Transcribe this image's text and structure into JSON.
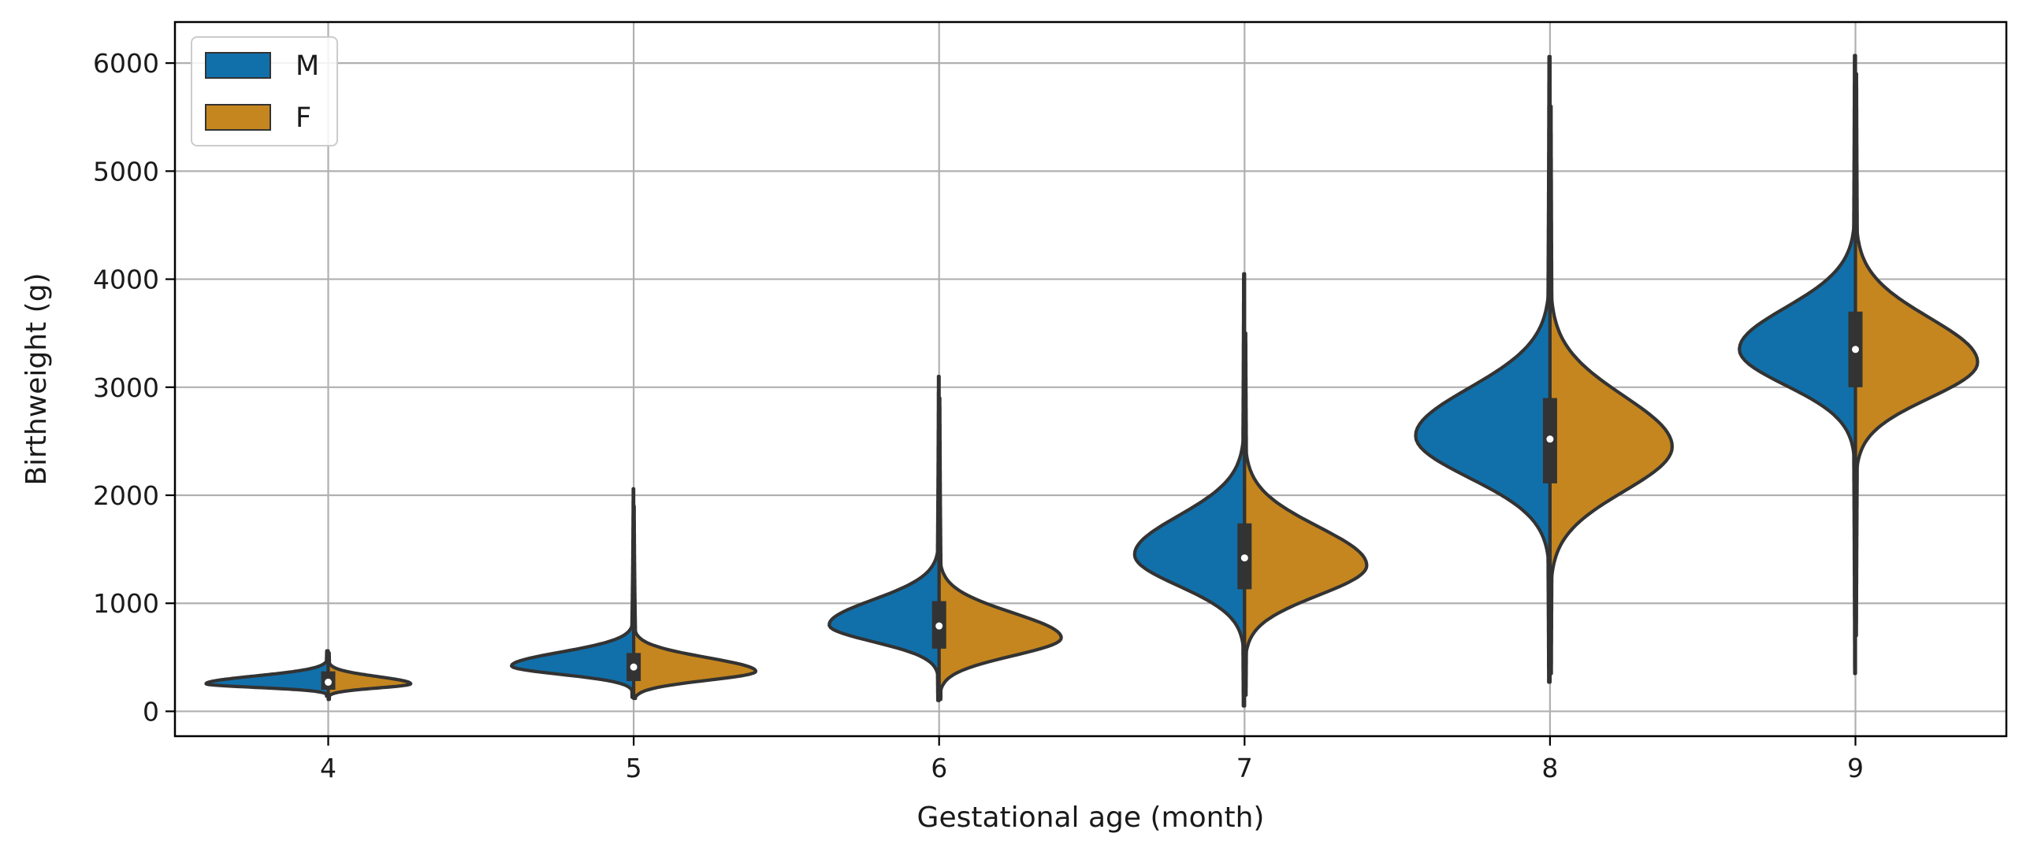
{
  "chart_data": {
    "type": "violin",
    "split": true,
    "xlabel": "Gestational age (month)",
    "ylabel": "Birthweight (g)",
    "ylim": [
      -230,
      6380
    ],
    "yticks": [
      0,
      1000,
      2000,
      3000,
      4000,
      5000,
      6000
    ],
    "categories": [
      "4",
      "5",
      "6",
      "7",
      "8",
      "9"
    ],
    "grid": true,
    "legend_position": "top-left",
    "series": [
      {
        "name": "M",
        "color": "#1170aa",
        "violins": [
          {
            "min": 140,
            "max": 560,
            "peak": 255,
            "peak_halfwidth": 0.4,
            "spread_below": 60,
            "spread_above": 130,
            "tail_top": 560,
            "tail_bottom": 140
          },
          {
            "min": 130,
            "max": 2060,
            "peak": 420,
            "peak_halfwidth": 0.4,
            "spread_below": 140,
            "spread_above": 230,
            "tail_top": 2060,
            "tail_bottom": 130
          },
          {
            "min": 100,
            "max": 3100,
            "peak": 800,
            "peak_halfwidth": 0.36,
            "spread_below": 280,
            "spread_above": 420,
            "tail_top": 3100,
            "tail_bottom": 100
          },
          {
            "min": 50,
            "max": 4050,
            "peak": 1450,
            "peak_halfwidth": 0.36,
            "spread_below": 520,
            "spread_above": 650,
            "tail_top": 4050,
            "tail_bottom": 50
          },
          {
            "min": 270,
            "max": 6060,
            "peak": 2550,
            "peak_halfwidth": 0.44,
            "spread_below": 700,
            "spread_above": 800,
            "tail_top": 6060,
            "tail_bottom": 270
          },
          {
            "min": 350,
            "max": 6070,
            "peak": 3350,
            "peak_halfwidth": 0.38,
            "spread_below": 600,
            "spread_above": 700,
            "tail_top": 6070,
            "tail_bottom": 350
          }
        ]
      },
      {
        "name": "F",
        "color": "#c5861f",
        "violins": [
          {
            "min": 110,
            "max": 540,
            "peak": 255,
            "peak_halfwidth": 0.27,
            "spread_below": 70,
            "spread_above": 120,
            "tail_top": 540,
            "tail_bottom": 110
          },
          {
            "min": 120,
            "max": 1900,
            "peak": 370,
            "peak_halfwidth": 0.4,
            "spread_below": 150,
            "spread_above": 230,
            "tail_top": 1900,
            "tail_bottom": 120
          },
          {
            "min": 110,
            "max": 2900,
            "peak": 680,
            "peak_halfwidth": 0.4,
            "spread_below": 300,
            "spread_above": 420,
            "tail_top": 2900,
            "tail_bottom": 110
          },
          {
            "min": 150,
            "max": 3500,
            "peak": 1350,
            "peak_halfwidth": 0.4,
            "spread_below": 500,
            "spread_above": 650,
            "tail_top": 3500,
            "tail_bottom": 150
          },
          {
            "min": 350,
            "max": 5600,
            "peak": 2450,
            "peak_halfwidth": 0.4,
            "spread_below": 750,
            "spread_above": 850,
            "tail_top": 5600,
            "tail_bottom": 350
          },
          {
            "min": 700,
            "max": 5900,
            "peak": 3230,
            "peak_halfwidth": 0.4,
            "spread_below": 600,
            "spread_above": 750,
            "tail_top": 5900,
            "tail_bottom": 700
          }
        ]
      }
    ],
    "boxes": [
      {
        "q1": 200,
        "median": 270,
        "q3": 370
      },
      {
        "q1": 280,
        "median": 410,
        "q3": 540
      },
      {
        "q1": 580,
        "median": 790,
        "q3": 1020
      },
      {
        "q1": 1130,
        "median": 1420,
        "q3": 1740
      },
      {
        "q1": 2110,
        "median": 2520,
        "q3": 2900
      },
      {
        "q1": 3000,
        "median": 3350,
        "q3": 3700
      }
    ]
  }
}
